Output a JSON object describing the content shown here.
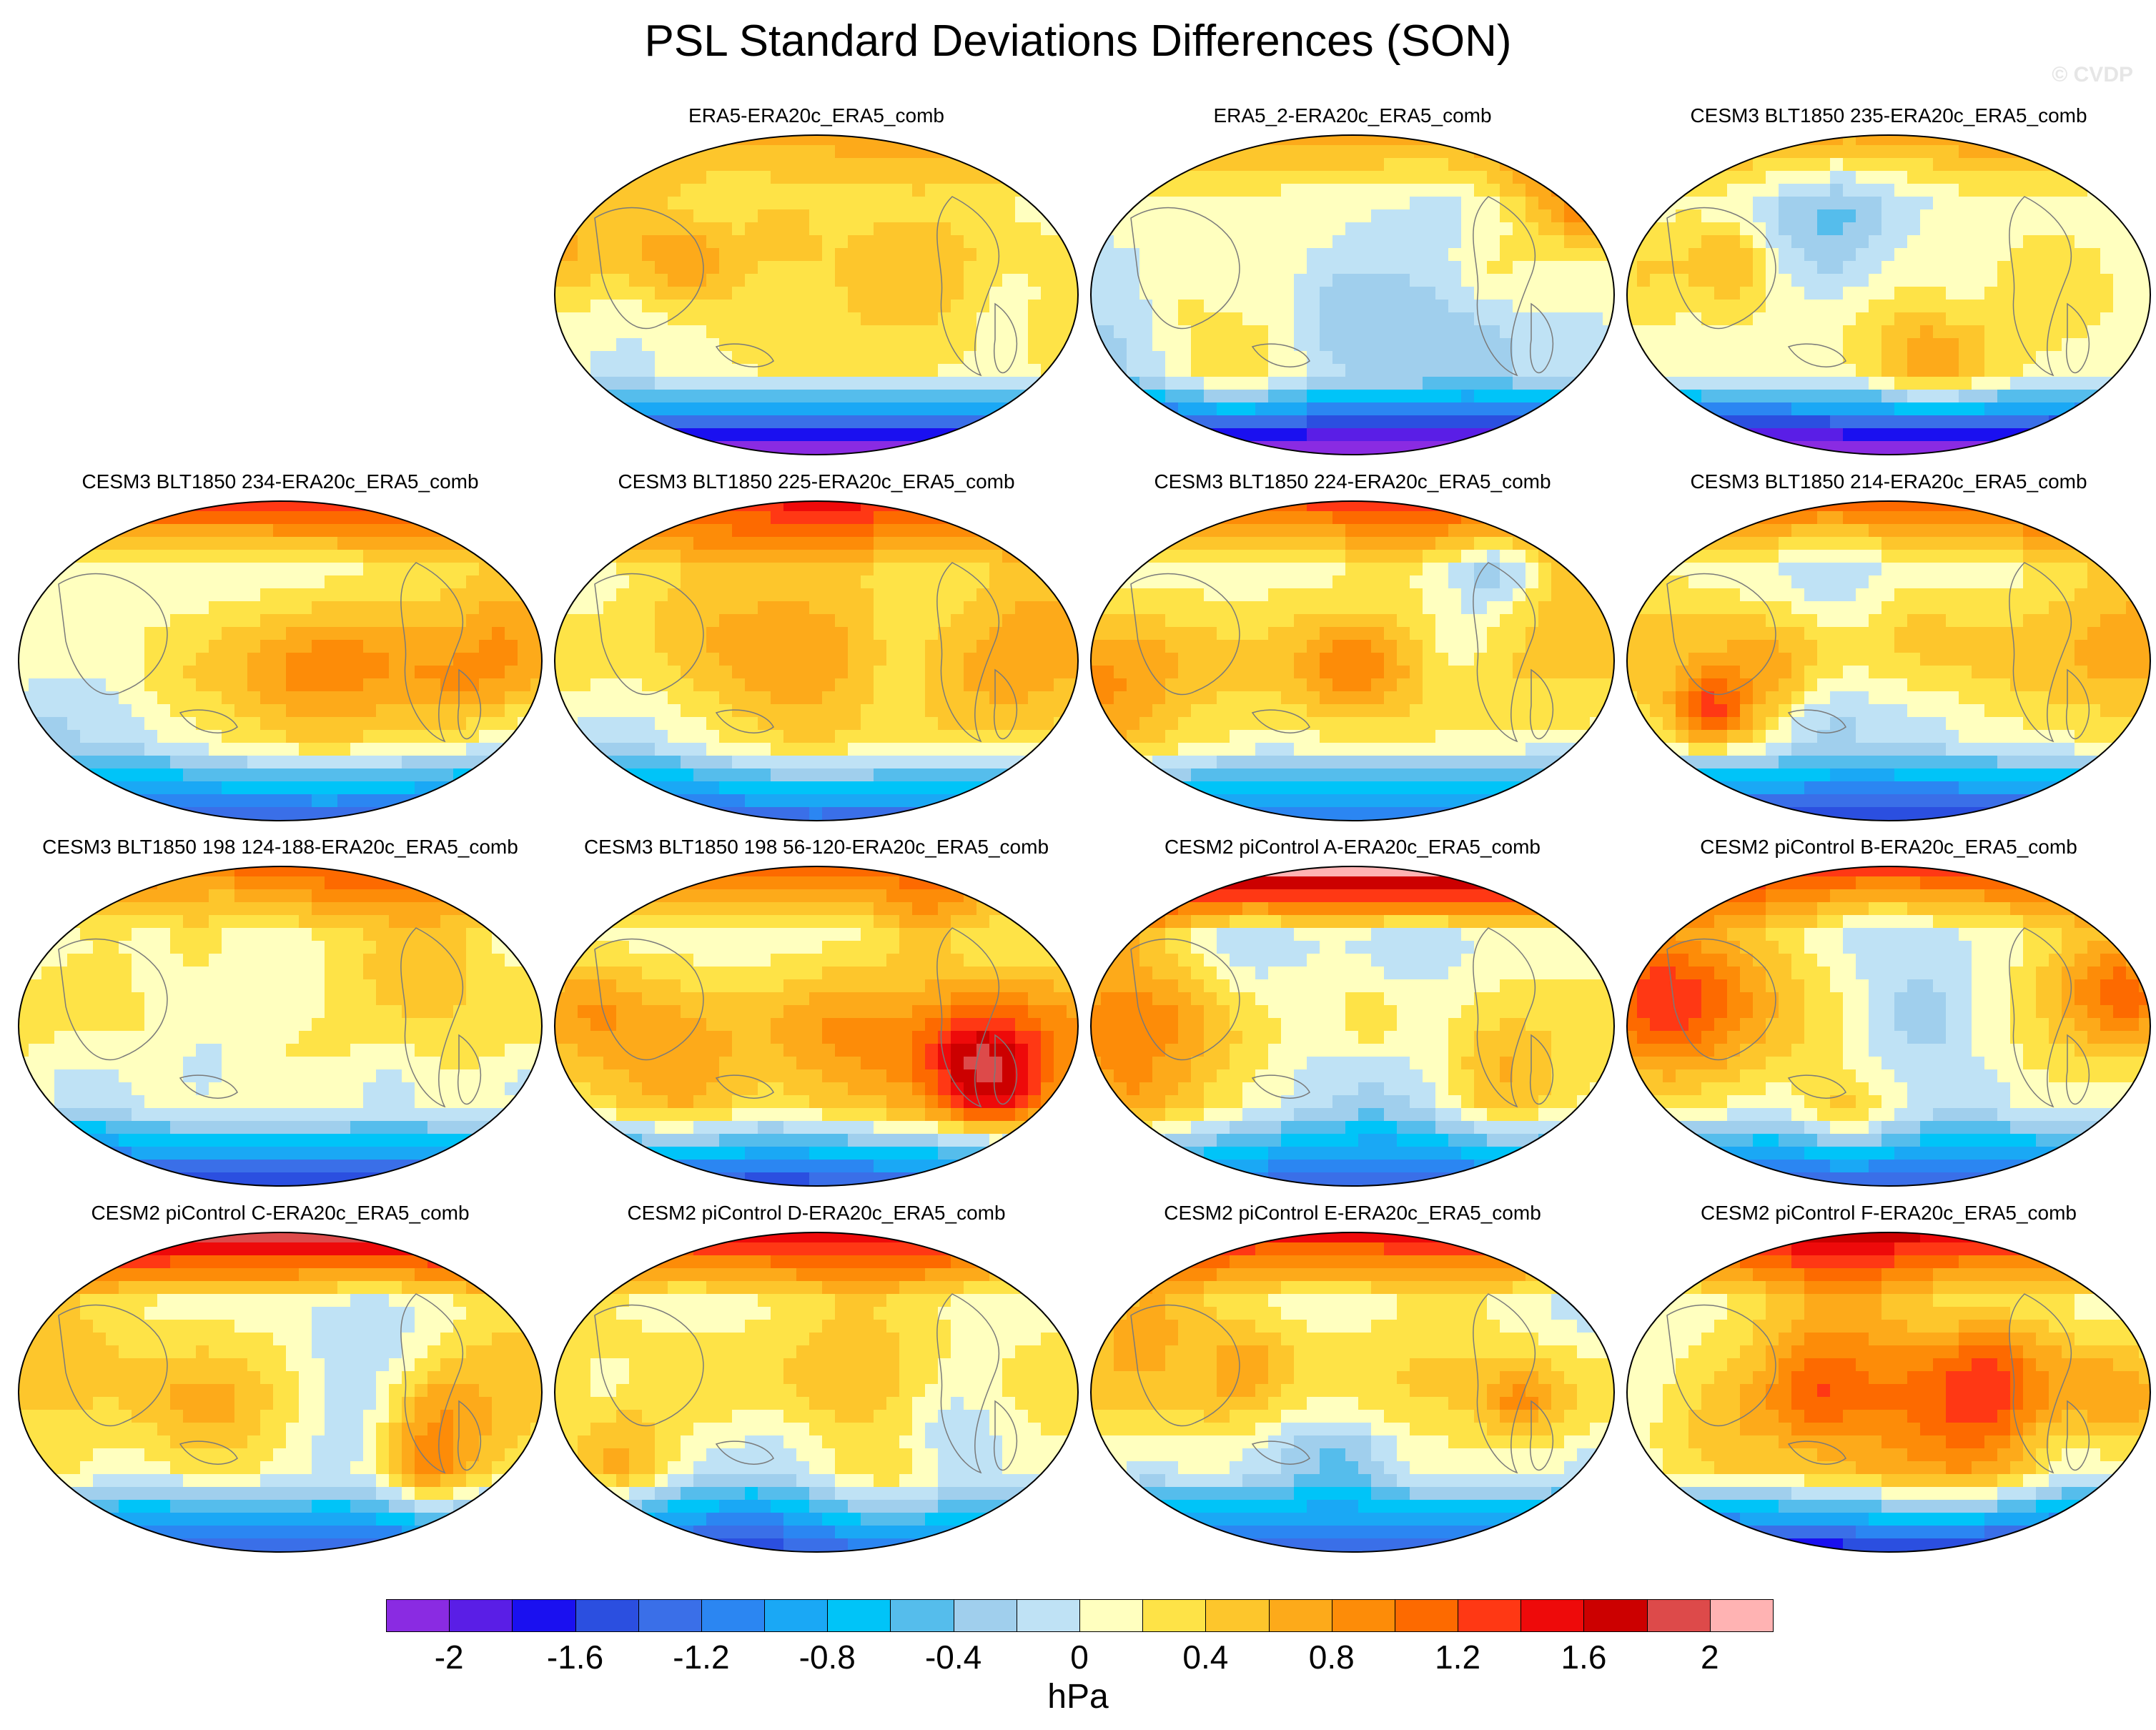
{
  "title": "PSL Standard Deviations Differences (SON)",
  "watermark": "© CVDP",
  "chart_data": {
    "type": "heatmap",
    "description_kind": "map panels",
    "variable": "PSL",
    "season": "SON",
    "units": "hPa",
    "panels": [
      {
        "title": "ERA5-ERA20c_ERA5_comb",
        "row": 0,
        "col": 1,
        "arctic": 0.45,
        "antarctic": -1.4,
        "tropics": 0.15,
        "pacific": -0.15
      },
      {
        "title": "ERA5_2-ERA20c_ERA5_comb",
        "row": 0,
        "col": 2,
        "arctic": 0.45,
        "antarctic": -1.5,
        "tropics": 0.15,
        "pacific": -0.2
      },
      {
        "title": "CESM3 BLT1850 235-ERA20c_ERA5_comb",
        "row": 0,
        "col": 3,
        "arctic": 0.55,
        "antarctic": -1.5,
        "tropics": 0.25,
        "pacific": -0.1
      },
      {
        "title": "CESM3 BLT1850 234-ERA20c_ERA5_comb",
        "row": 1,
        "col": 0,
        "arctic": 0.9,
        "antarctic": -0.9,
        "tropics": 0.35,
        "pacific": 0.2
      },
      {
        "title": "CESM3 BLT1850 225-ERA20c_ERA5_comb",
        "row": 1,
        "col": 1,
        "arctic": 0.8,
        "antarctic": -0.9,
        "tropics": 0.35,
        "pacific": 0.15
      },
      {
        "title": "CESM3 BLT1850 224-ERA20c_ERA5_comb",
        "row": 1,
        "col": 2,
        "arctic": 0.8,
        "antarctic": -0.8,
        "tropics": 0.4,
        "pacific": 0.15
      },
      {
        "title": "CESM3 BLT1850 214-ERA20c_ERA5_comb",
        "row": 1,
        "col": 3,
        "arctic": 0.8,
        "antarctic": -1.0,
        "tropics": 0.4,
        "pacific": 0.15
      },
      {
        "title": "CESM3 BLT1850 198 124-188-ERA20c_ERA5_comb",
        "row": 2,
        "col": 0,
        "arctic": 0.7,
        "antarctic": -1.0,
        "tropics": 0.3,
        "pacific": -0.1
      },
      {
        "title": "CESM3 BLT1850 198 56-120-ERA20c_ERA5_comb",
        "row": 2,
        "col": 1,
        "arctic": 0.8,
        "antarctic": -1.0,
        "tropics": 0.45,
        "pacific": 0.1
      },
      {
        "title": "CESM2 piControl A-ERA20c_ERA5_comb",
        "row": 2,
        "col": 2,
        "arctic": 1.5,
        "antarctic": -0.8,
        "tropics": 0.3,
        "pacific": -0.1
      },
      {
        "title": "CESM2 piControl B-ERA20c_ERA5_comb",
        "row": 2,
        "col": 3,
        "arctic": 0.9,
        "antarctic": -0.9,
        "tropics": 0.3,
        "pacific": -0.1
      },
      {
        "title": "CESM2 piControl C-ERA20c_ERA5_comb",
        "row": 3,
        "col": 0,
        "arctic": 1.3,
        "antarctic": -0.9,
        "tropics": 0.35,
        "pacific": 0.1
      },
      {
        "title": "CESM2 piControl D-ERA20c_ERA5_comb",
        "row": 3,
        "col": 1,
        "arctic": 1.0,
        "antarctic": -0.9,
        "tropics": 0.35,
        "pacific": 0.1
      },
      {
        "title": "CESM2 piControl E-ERA20c_ERA5_comb",
        "row": 3,
        "col": 2,
        "arctic": 1.0,
        "antarctic": -0.9,
        "tropics": 0.35,
        "pacific": 0.1
      },
      {
        "title": "CESM2 piControl F-ERA20c_ERA5_comb",
        "row": 3,
        "col": 3,
        "arctic": 1.0,
        "antarctic": -1.2,
        "tropics": 0.35,
        "pacific": 0.1
      }
    ],
    "colorbar": {
      "levels": [
        -2.2,
        -2,
        -1.8,
        -1.6,
        -1.4,
        -1.2,
        -1,
        -0.8,
        -0.6,
        -0.4,
        -0.2,
        0,
        0.2,
        0.4,
        0.6,
        0.8,
        1,
        1.2,
        1.4,
        1.6,
        1.8,
        2,
        2.2
      ],
      "colors": [
        "#8a2be2",
        "#5a1ee6",
        "#1a10f0",
        "#2b4fe0",
        "#3a6fe8",
        "#2b86f2",
        "#1aa8f5",
        "#00c4f8",
        "#55bdec",
        "#a0cfed",
        "#bfe2f5",
        "#ffffbf",
        "#fee347",
        "#fdc62c",
        "#fdaa1a",
        "#fd8c08",
        "#fd6a00",
        "#ff3814",
        "#ee0a0a",
        "#cc0000",
        "#dd4a4a",
        "#ffb3b3"
      ],
      "tick_labels": [
        "-2",
        "-1.6",
        "-1.2",
        "-0.8",
        "-0.4",
        "0",
        "0.4",
        "0.8",
        "1.2",
        "1.6",
        "2"
      ],
      "label": "hPa"
    }
  }
}
